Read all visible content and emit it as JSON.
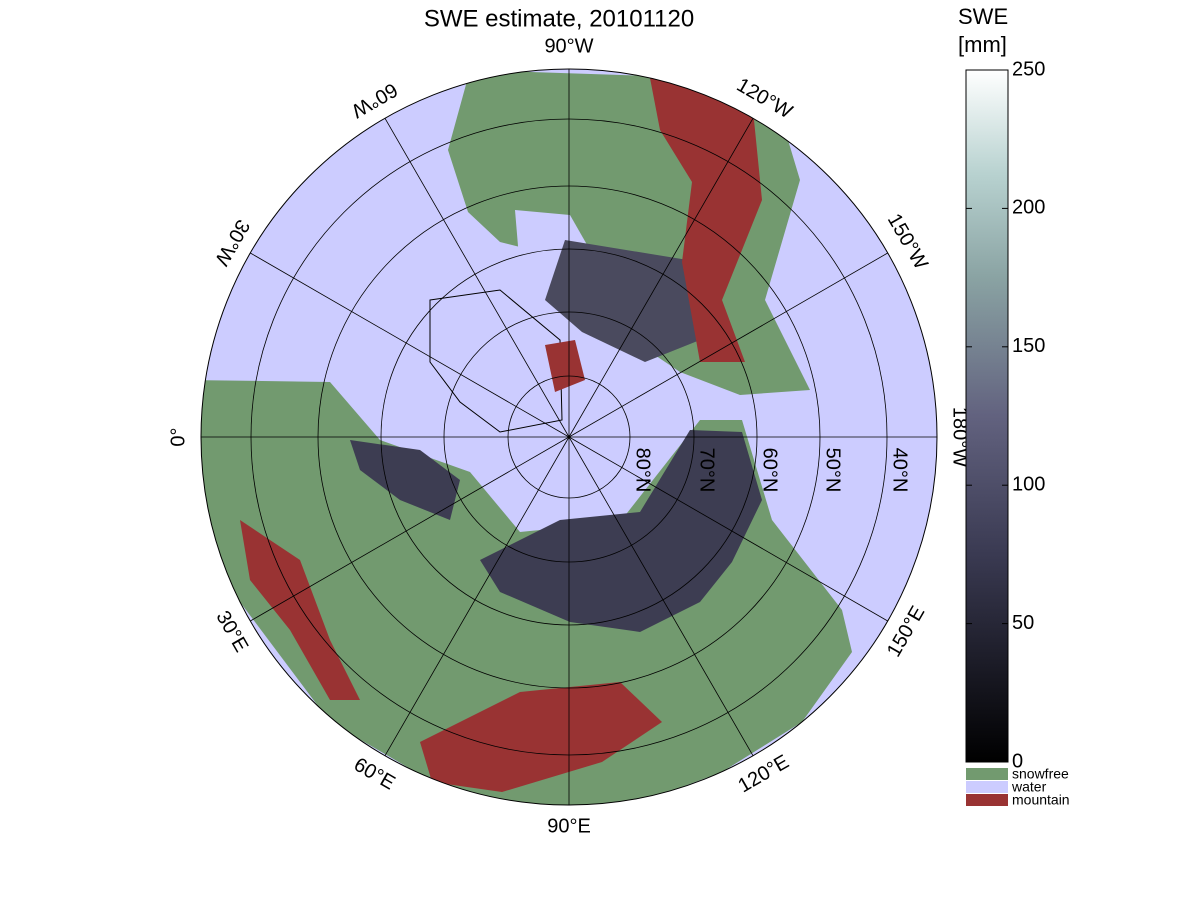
{
  "title": "SWE estimate, 20101120",
  "map": {
    "longitude_labels": [
      "90°W",
      "120°W",
      "150°W",
      "180°W",
      "150°E",
      "120°E",
      "90°E",
      "60°E",
      "30°E",
      "0°",
      "30°W",
      "60°W"
    ],
    "latitude_labels": [
      "80°N",
      "70°N",
      "60°N",
      "50°N",
      "40°N"
    ]
  },
  "colorbar": {
    "title": [
      "SWE",
      "[mm]"
    ],
    "ylim": [
      0,
      250
    ],
    "yticks": [
      0,
      50,
      100,
      150,
      200,
      250
    ]
  },
  "legend": [
    "snowfree",
    "water",
    "mountain"
  ]
}
